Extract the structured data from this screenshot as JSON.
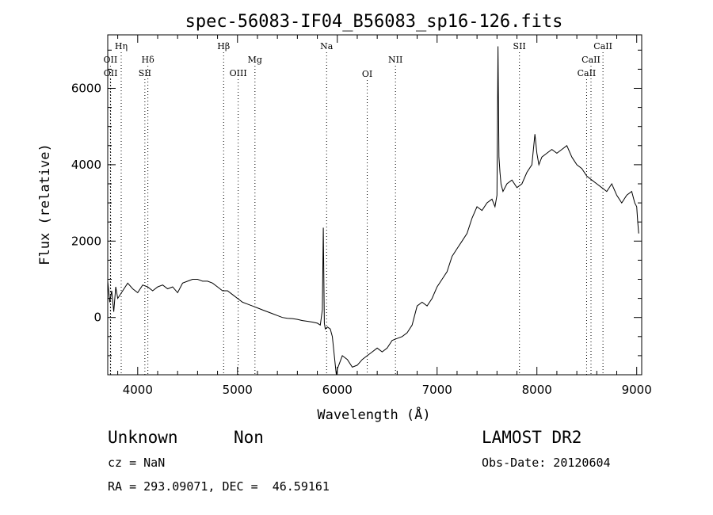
{
  "chart_data": {
    "type": "line",
    "title": "spec-56083-IF04_B56083_sp16-126.fits",
    "xlabel": "Wavelength (Å)",
    "ylabel": "Flux (relative)",
    "xlim": [
      3700,
      9050
    ],
    "ylim": [
      -1500,
      7400
    ],
    "xticks": [
      4000,
      5000,
      6000,
      7000,
      8000,
      9000
    ],
    "yticks": [
      0,
      2000,
      4000,
      6000
    ],
    "grid": false,
    "line_color": "#000000",
    "series": [
      {
        "x": [
          3700,
          3720,
          3740,
          3760,
          3780,
          3800,
          3850,
          3900,
          3950,
          4000,
          4050,
          4100,
          4150,
          4200,
          4250,
          4300,
          4350,
          4400,
          4450,
          4500,
          4550,
          4600,
          4650,
          4700,
          4750,
          4800,
          4850,
          4900,
          4950,
          5000,
          5050,
          5100,
          5150,
          5200,
          5250,
          5300,
          5350,
          5400,
          5450,
          5500,
          5550,
          5600,
          5650,
          5700,
          5750,
          5800,
          5830,
          5850,
          5860,
          5870,
          5880,
          5900,
          5930,
          5950,
          5970,
          5990,
          6000,
          6050,
          6100,
          6150,
          6200,
          6250,
          6300,
          6350,
          6400,
          6450,
          6500,
          6550,
          6600,
          6650,
          6700,
          6750,
          6800,
          6850,
          6900,
          6950,
          7000,
          7050,
          7100,
          7150,
          7200,
          7250,
          7300,
          7350,
          7400,
          7450,
          7500,
          7550,
          7580,
          7600,
          7610,
          7620,
          7630,
          7640,
          7660,
          7700,
          7750,
          7800,
          7850,
          7900,
          7950,
          7980,
          8000,
          8020,
          8050,
          8100,
          8150,
          8200,
          8250,
          8300,
          8350,
          8400,
          8450,
          8500,
          8550,
          8600,
          8650,
          8700,
          8750,
          8800,
          8850,
          8900,
          8950,
          8980,
          9000,
          9010,
          9020
        ],
        "y": [
          950,
          400,
          700,
          150,
          800,
          500,
          700,
          900,
          750,
          650,
          850,
          800,
          700,
          800,
          850,
          750,
          800,
          650,
          900,
          950,
          1000,
          1000,
          950,
          950,
          900,
          800,
          700,
          700,
          600,
          500,
          400,
          350,
          300,
          250,
          200,
          150,
          100,
          50,
          0,
          -20,
          -30,
          -50,
          -80,
          -100,
          -120,
          -150,
          -200,
          200,
          2350,
          -150,
          -300,
          -250,
          -300,
          -500,
          -1000,
          -1500,
          -1350,
          -1000,
          -1100,
          -1300,
          -1250,
          -1100,
          -1000,
          -900,
          -800,
          -900,
          -800,
          -600,
          -550,
          -500,
          -400,
          -200,
          300,
          400,
          300,
          500,
          800,
          1000,
          1200,
          1600,
          1800,
          2000,
          2200,
          2600,
          2900,
          2800,
          3000,
          3100,
          2900,
          3200,
          7100,
          4200,
          3800,
          3500,
          3300,
          3500,
          3600,
          3400,
          3500,
          3800,
          4000,
          4800,
          4300,
          4000,
          4200,
          4300,
          4400,
          4300,
          4400,
          4500,
          4200,
          4000,
          3900,
          3700,
          3600,
          3500,
          3400,
          3300,
          3500,
          3200,
          3000,
          3200,
          3300,
          3000,
          2900,
          2500,
          2200
        ]
      }
    ],
    "annotations": [
      {
        "label": "Hη",
        "x": 3835,
        "row": 1
      },
      {
        "label": "OII",
        "x": 3727,
        "row": 2
      },
      {
        "label": "OII",
        "x": 3729,
        "row": 3
      },
      {
        "label": "Hδ",
        "x": 4102,
        "row": 2
      },
      {
        "label": "SII",
        "x": 4072,
        "row": 3
      },
      {
        "label": "Hβ",
        "x": 4861,
        "row": 1
      },
      {
        "label": "Mg",
        "x": 5175,
        "row": 2
      },
      {
        "label": "OIII",
        "x": 5007,
        "row": 3
      },
      {
        "label": "Na",
        "x": 5893,
        "row": 1
      },
      {
        "label": "OI",
        "x": 6300,
        "row": 4
      },
      {
        "label": "NII",
        "x": 6583,
        "row": 2
      },
      {
        "label": "SII",
        "x": 7825,
        "row": 1
      },
      {
        "label": "CaII",
        "x": 8662,
        "row": 1
      },
      {
        "label": "CaII",
        "x": 8542,
        "row": 2
      },
      {
        "label": "CaII",
        "x": 8498,
        "row": 3
      }
    ]
  },
  "info": {
    "class": "Unknown",
    "subclass": "Non",
    "survey": "LAMOST DR2",
    "cz": "cz = NaN",
    "obs_date": "Obs-Date: 20120604",
    "coords": "RA = 293.09071, DEC =  46.59161"
  }
}
